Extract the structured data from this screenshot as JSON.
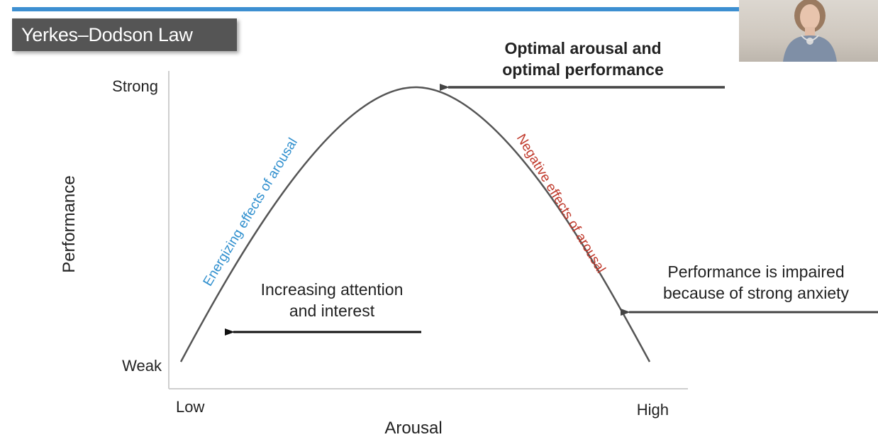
{
  "slide": {
    "title": "Yerkes–Dodson Law",
    "accent_color": "#3d8fd1"
  },
  "axes": {
    "y_label": "Performance",
    "x_label": "Arousal",
    "y_top": "Strong",
    "y_bottom": "Weak",
    "x_left": "Low",
    "x_right": "High"
  },
  "curve": {
    "left_label": "Energizing effects of arousal",
    "left_color": "#2f8fce",
    "right_label": "Negative effects of arousal",
    "right_color": "#c0392b"
  },
  "annotations": {
    "peak_line1": "Optimal arousal and",
    "peak_line2": "optimal performance",
    "left_line1": "Increasing attention",
    "left_line2": "and interest",
    "right_line1": "Performance is impaired",
    "right_line2": "because of strong anxiety"
  },
  "webcam": {
    "icon": "presenter-video-icon"
  }
}
